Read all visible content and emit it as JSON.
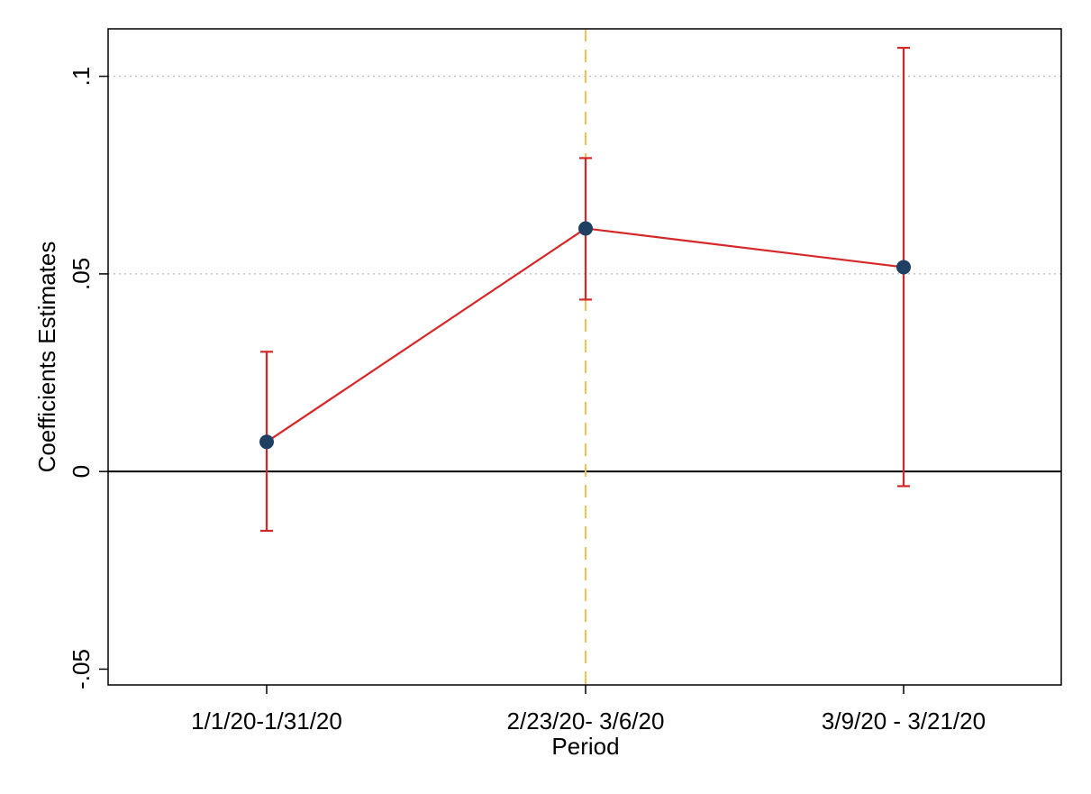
{
  "chart_data": {
    "type": "line",
    "xlabel": "Period",
    "ylabel": "Coefficients Estimates",
    "categories": [
      "1/1/20-1/31/20",
      "2/23/20- 3/6/20",
      "3/9/20 - 3/21/20"
    ],
    "ylim": [
      -0.054,
      0.112
    ],
    "yticks": [
      -0.05,
      0,
      0.05,
      0.1
    ],
    "ytick_labels": [
      "-.05",
      "0",
      ".05",
      ".1"
    ],
    "series": [
      {
        "values": [
          0.0075,
          0.0615,
          0.0517
        ],
        "ci_low": [
          -0.015,
          0.0435,
          -0.0037
        ],
        "ci_high": [
          0.0303,
          0.0793,
          0.1072
        ]
      }
    ],
    "reference_line_y": 0,
    "vertical_marker_category": "2/23/20- 3/6/20",
    "grid": "dotted horizontal at .05 and .1",
    "colors": {
      "line": "#d62728",
      "marker": "#1f3f63",
      "vline": "#f2c14e",
      "grid": "#bbbbbb",
      "axis": "#000000"
    }
  }
}
